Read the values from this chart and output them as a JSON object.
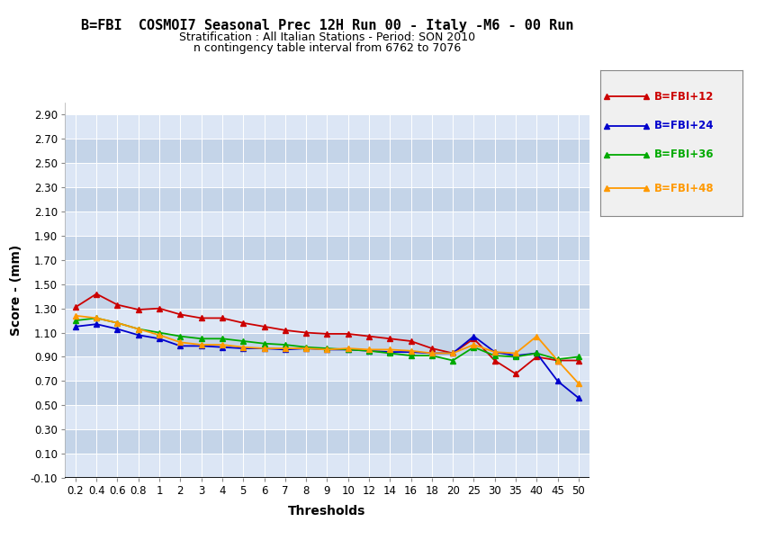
{
  "title": "B=FBI  COSMOI7 Seasonal Prec 12H Run 00 - Italy -M6 - 00 Run",
  "subtitle1": "Stratification : All Italian Stations - Period: SON 2010",
  "subtitle2": "n contingency table interval from 6762 to 7076",
  "xlabel": "Thresholds",
  "ylabel": "Score - (mm)",
  "thresholds": [
    0.2,
    0.4,
    0.6,
    0.8,
    1,
    2,
    3,
    4,
    5,
    6,
    7,
    8,
    9,
    10,
    12,
    14,
    16,
    18,
    20,
    25,
    30,
    35,
    40,
    45,
    50
  ],
  "series": {
    "B=FBI+12": {
      "color": "#cc0000",
      "values": [
        1.31,
        1.42,
        1.33,
        1.29,
        1.3,
        1.25,
        1.22,
        1.22,
        1.18,
        1.15,
        1.12,
        1.1,
        1.09,
        1.09,
        1.07,
        1.05,
        1.03,
        0.97,
        0.93,
        1.05,
        0.87,
        0.76,
        0.9,
        0.87,
        0.87
      ]
    },
    "B=FBI+24": {
      "color": "#0000cc",
      "values": [
        1.15,
        1.17,
        1.13,
        1.08,
        1.05,
        0.99,
        0.99,
        0.98,
        0.97,
        0.97,
        0.96,
        0.97,
        0.96,
        0.96,
        0.95,
        0.94,
        0.94,
        0.93,
        0.93,
        1.07,
        0.94,
        0.91,
        0.93,
        0.7,
        0.56
      ]
    },
    "B=FBI+36": {
      "color": "#00aa00",
      "values": [
        1.2,
        1.22,
        1.18,
        1.13,
        1.1,
        1.07,
        1.05,
        1.05,
        1.03,
        1.01,
        1.0,
        0.98,
        0.97,
        0.96,
        0.95,
        0.93,
        0.91,
        0.91,
        0.87,
        0.98,
        0.91,
        0.9,
        0.93,
        0.88,
        0.9
      ]
    },
    "B=FBI+48": {
      "color": "#ff9900",
      "values": [
        1.24,
        1.22,
        1.18,
        1.13,
        1.08,
        1.02,
        1.0,
        1.0,
        0.98,
        0.97,
        0.97,
        0.97,
        0.96,
        0.97,
        0.96,
        0.96,
        0.95,
        0.93,
        0.93,
        1.0,
        0.94,
        0.93,
        1.07,
        0.87,
        0.68
      ]
    }
  },
  "ylim": [
    -0.1,
    3.0
  ],
  "yticks": [
    -0.1,
    0.1,
    0.3,
    0.5,
    0.7,
    0.9,
    1.1,
    1.3,
    1.5,
    1.7,
    1.9,
    2.1,
    2.3,
    2.5,
    2.7,
    2.9
  ],
  "bg_color_light": "#dce6f5",
  "bg_color_dark": "#c4d4e8",
  "fig_bg": "#ffffff",
  "legend_bg": "#f0f0f0",
  "title_fontsize": 11,
  "subtitle_fontsize": 9,
  "axis_label_fontsize": 10,
  "tick_fontsize": 8.5
}
